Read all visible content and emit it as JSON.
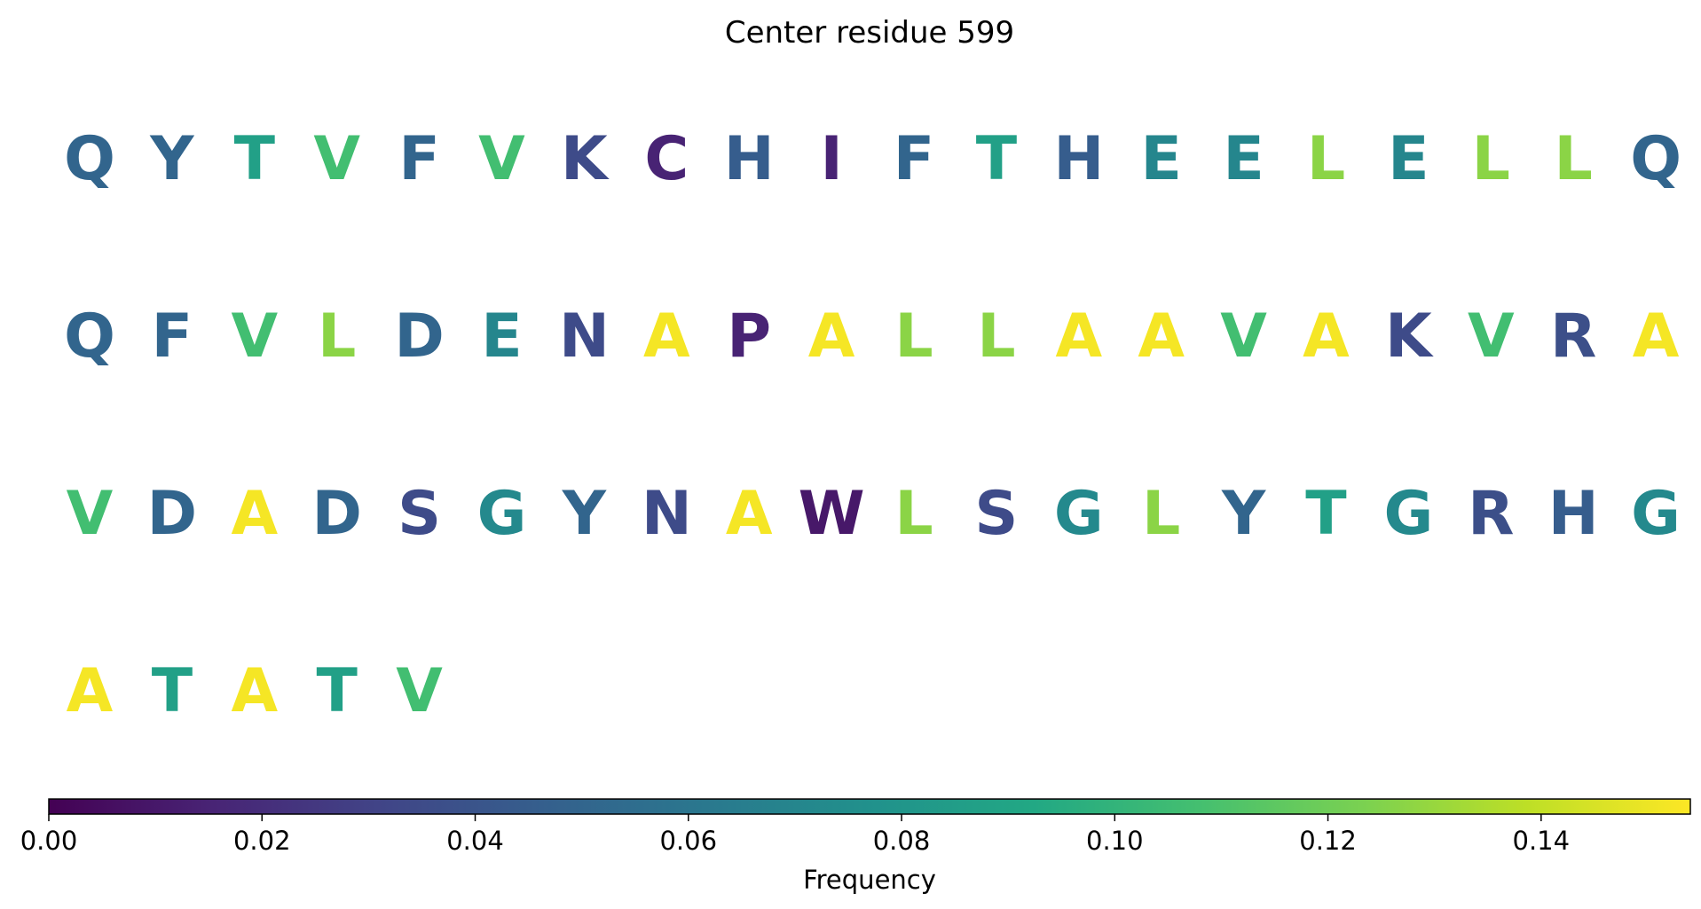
{
  "chart_data": {
    "type": "heatmap",
    "title": "Center residue 599",
    "sequence_rows": [
      [
        "Q",
        "Y",
        "T",
        "V",
        "F",
        "V",
        "K",
        "C",
        "H",
        "I",
        "F",
        "T",
        "H",
        "E",
        "E",
        "L",
        "E",
        "L",
        "L",
        "Q"
      ],
      [
        "Q",
        "F",
        "V",
        "L",
        "D",
        "E",
        "N",
        "A",
        "P",
        "A",
        "L",
        "L",
        "A",
        "A",
        "V",
        "A",
        "K",
        "V",
        "R",
        "A"
      ],
      [
        "V",
        "D",
        "A",
        "D",
        "S",
        "G",
        "Y",
        "N",
        "A",
        "W",
        "L",
        "S",
        "G",
        "L",
        "Y",
        "T",
        "G",
        "R",
        "H",
        "G"
      ],
      [
        "A",
        "T",
        "A",
        "T",
        "V"
      ]
    ],
    "frequencies": {
      "A": 0.152,
      "L": 0.127,
      "V": 0.107,
      "T": 0.087,
      "E": 0.07,
      "G": 0.072,
      "Q": 0.05,
      "Y": 0.05,
      "F": 0.05,
      "D": 0.05,
      "H": 0.045,
      "R": 0.037,
      "K": 0.035,
      "N": 0.035,
      "S": 0.035,
      "C": 0.015,
      "I": 0.015,
      "P": 0.015,
      "W": 0.01
    },
    "colorbar": {
      "label": "Frequency",
      "colormap": "viridis",
      "range": [
        0,
        0.154
      ],
      "ticks": [
        0.0,
        0.02,
        0.04,
        0.06,
        0.08,
        0.1,
        0.12,
        0.14
      ],
      "tick_labels": [
        "0.00",
        "0.02",
        "0.04",
        "0.06",
        "0.08",
        "0.10",
        "0.12",
        "0.14"
      ]
    }
  }
}
